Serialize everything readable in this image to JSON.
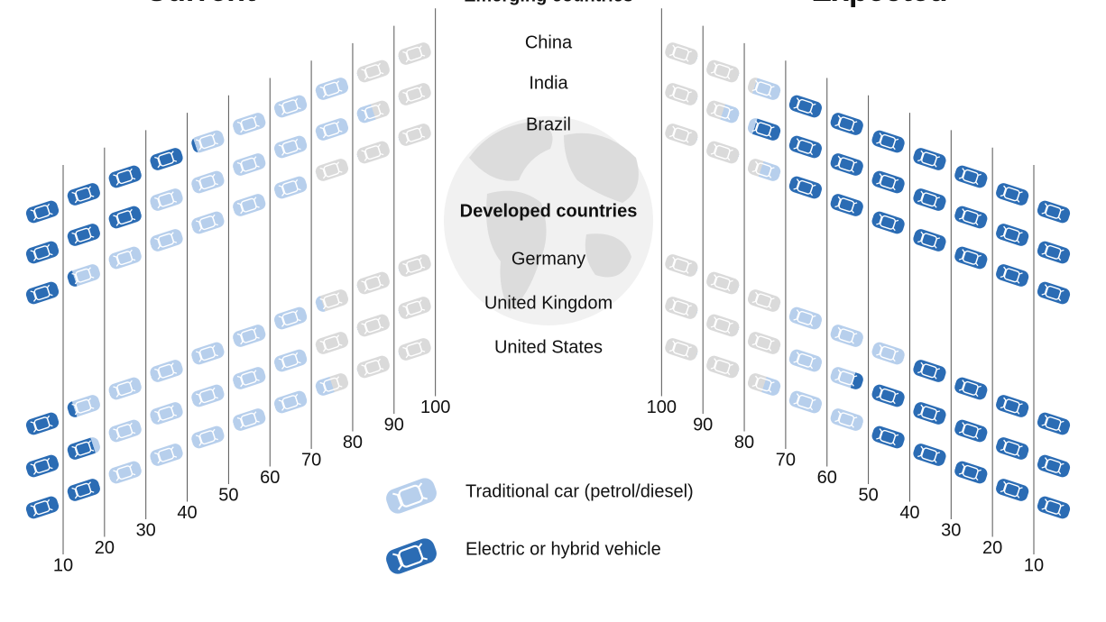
{
  "chart_data": {
    "type": "pictogram",
    "panels": [
      {
        "title": "Current",
        "key": "current"
      },
      {
        "title": "Expected",
        "key": "expected"
      }
    ],
    "xticks": [
      10,
      20,
      30,
      40,
      50,
      60,
      70,
      80,
      90,
      100
    ],
    "colors": {
      "electric": "#2b6cb4",
      "traditional": "#b7cfec",
      "other": "#dadada"
    },
    "groups": [
      {
        "name": "Emerging countries",
        "countries": [
          {
            "name": "China",
            "current": {
              "electric": 41,
              "traditional": 39
            },
            "expected": {
              "electric": 70,
              "traditional": 8
            }
          },
          {
            "name": "India",
            "current": {
              "electric": 30,
              "traditional": 55
            },
            "expected": {
              "electric": 78,
              "traditional": 7
            }
          },
          {
            "name": "Brazil",
            "current": {
              "electric": 12,
              "traditional": 58
            },
            "expected": {
              "electric": 70,
              "traditional": 6
            }
          }
        ]
      },
      {
        "name": "Developed countries",
        "countries": [
          {
            "name": "Germany",
            "current": {
              "electric": 12,
              "traditional": 60
            },
            "expected": {
              "electric": 40,
              "traditional": 30
            }
          },
          {
            "name": "United Kingdom",
            "current": {
              "electric": 18,
              "traditional": 52
            },
            "expected": {
              "electric": 53,
              "traditional": 17
            }
          },
          {
            "name": "United States",
            "current": {
              "electric": 20,
              "traditional": 55
            },
            "expected": {
              "electric": 50,
              "traditional": 25
            }
          }
        ]
      }
    ],
    "legend": {
      "traditional": "Traditional car (petrol/diesel)",
      "electric": "Electric or hybrid vehicle"
    }
  }
}
